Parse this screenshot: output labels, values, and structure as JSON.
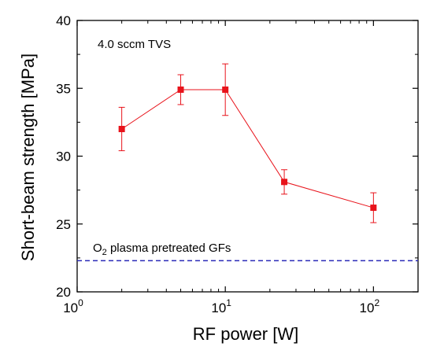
{
  "chart_data": {
    "type": "line",
    "title": "",
    "xlabel": "RF power [W]",
    "ylabel": "Short-beam strength [MPa]",
    "xscale": "log",
    "xlim": [
      1,
      200
    ],
    "ylim": [
      20,
      40
    ],
    "grid": false,
    "x_ticks": [
      {
        "value": 1,
        "base": "10",
        "exp": "0"
      },
      {
        "value": 10,
        "base": "10",
        "exp": "1"
      },
      {
        "value": 100,
        "base": "10",
        "exp": "2"
      }
    ],
    "y_ticks": [
      "20",
      "25",
      "30",
      "35",
      "40"
    ],
    "series": [
      {
        "color": "#e8131b",
        "marker": "square",
        "x": [
          2,
          5,
          10,
          25,
          100
        ],
        "y": [
          32.0,
          34.9,
          34.9,
          28.1,
          26.2
        ],
        "yerr_low": [
          30.4,
          33.8,
          33.0,
          27.2,
          25.1
        ],
        "yerr_high": [
          33.6,
          36.0,
          36.8,
          29.0,
          27.3
        ]
      }
    ],
    "reference_line": {
      "y": 22.3,
      "color": "#2a2ab8",
      "style": "dashed",
      "label_main": "O",
      "label_sub": "2",
      "label_rest": " plasma pretreated GFs"
    },
    "annotation": "4.0 sccm TVS"
  }
}
